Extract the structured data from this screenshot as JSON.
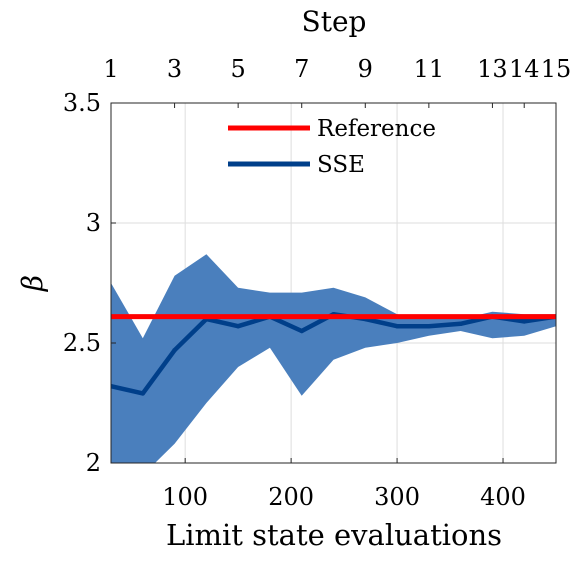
{
  "chart_data": {
    "type": "line",
    "xlabel": "Limit state evaluations",
    "ylabel": "β",
    "top_xlabel": "Step",
    "xlim": [
      30,
      450
    ],
    "ylim": [
      2,
      3.5
    ],
    "xticks": [
      100,
      200,
      300,
      400
    ],
    "yticks": [
      2,
      2.5,
      3,
      3.5
    ],
    "ytick_labels": [
      "2",
      "2.5",
      "3",
      "3.5"
    ],
    "top_ticks": [
      {
        "x": 30,
        "label": "1"
      },
      {
        "x": 90,
        "label": "3"
      },
      {
        "x": 150,
        "label": "5"
      },
      {
        "x": 210,
        "label": "7"
      },
      {
        "x": 270,
        "label": "9"
      },
      {
        "x": 330,
        "label": "11"
      },
      {
        "x": 390,
        "label": "13"
      },
      {
        "x": 420,
        "label": "14"
      },
      {
        "x": 450,
        "label": "15"
      }
    ],
    "grid": true,
    "legend_position": "top-center",
    "reference": {
      "name": "Reference",
      "value": 2.61,
      "color": "#ff0000"
    },
    "series": [
      {
        "name": "SSE",
        "color": "#003f8a",
        "band_color": "#4a7fbd",
        "x": [
          30,
          60,
          90,
          120,
          150,
          180,
          210,
          240,
          270,
          300,
          330,
          360,
          390,
          420,
          450
        ],
        "values": [
          2.32,
          2.29,
          2.47,
          2.6,
          2.57,
          2.61,
          2.55,
          2.62,
          2.6,
          2.57,
          2.57,
          2.58,
          2.61,
          2.59,
          2.61
        ],
        "band_upper": [
          2.75,
          2.52,
          2.78,
          2.87,
          2.73,
          2.71,
          2.71,
          2.73,
          2.69,
          2.62,
          2.6,
          2.6,
          2.63,
          2.62,
          2.62
        ],
        "band_lower": [
          1.95,
          1.95,
          2.08,
          2.25,
          2.4,
          2.48,
          2.28,
          2.43,
          2.48,
          2.5,
          2.53,
          2.55,
          2.52,
          2.53,
          2.57
        ]
      }
    ]
  }
}
